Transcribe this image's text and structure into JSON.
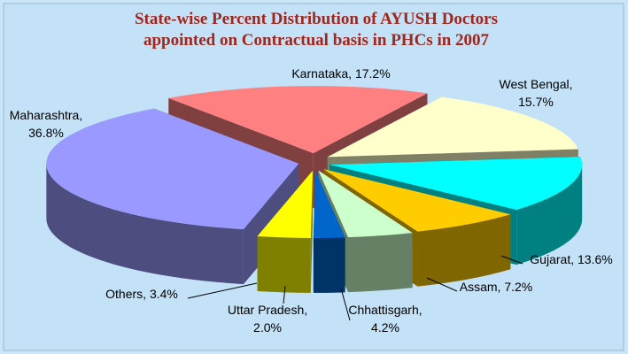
{
  "chart_data": {
    "type": "pie3d",
    "title": [
      "State-wise Percent Distribution of AYUSH Doctors",
      "appointed on Contractual basis in PHCs in 2007"
    ],
    "categories": [
      "Karnataka",
      "West Bengal",
      "Gujarat",
      "Assam",
      "Chhattisgarh",
      "Uttar Pradesh",
      "Others",
      "Maharashtra"
    ],
    "values": [
      17.2,
      15.7,
      13.6,
      7.2,
      4.2,
      2.0,
      3.4,
      36.8
    ],
    "value_labels": [
      "17.2%",
      "15.7%",
      "13.6%",
      "7.2%",
      "4.2%",
      "2.0%",
      "3.4%",
      "36.8%"
    ],
    "colors": [
      "#ff8080",
      "#ffffcc",
      "#00ffff",
      "#ffcc00",
      "#ccffcc",
      "#0066cc",
      "#ffff00",
      "#9999ff"
    ]
  }
}
